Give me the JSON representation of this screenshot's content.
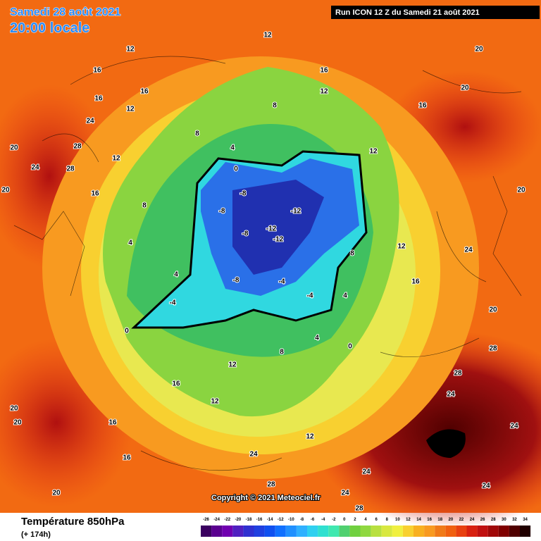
{
  "header": {
    "date": "Samedi 28 août 2021",
    "time": "20:00 locale",
    "run": "Run ICON 12 Z du Samedi 21 août 2021"
  },
  "copyright": "Copyright © 2021 Meteociel.fr",
  "footer": {
    "title": "Température 850hPa",
    "lead": "(+ 174h)"
  },
  "legend": {
    "labels": [
      -26,
      -24,
      -22,
      -20,
      -18,
      -16,
      -14,
      -12,
      -10,
      -8,
      -6,
      -4,
      -2,
      0,
      2,
      4,
      6,
      8,
      10,
      12,
      14,
      16,
      18,
      20,
      22,
      24,
      26,
      28,
      30,
      32,
      34
    ]
  },
  "map_labels": [
    12,
    16,
    20,
    12,
    16,
    16,
    24,
    28,
    28,
    24,
    20,
    16,
    12,
    8,
    4,
    4,
    8,
    12,
    12,
    16,
    20,
    20,
    20,
    24,
    16,
    12,
    8,
    4,
    0,
    -8,
    -8,
    -12,
    -12,
    -12,
    -8,
    -8,
    -4,
    -4,
    -4,
    0,
    0,
    4,
    8,
    12,
    16,
    20,
    24,
    28,
    28,
    24,
    24,
    20,
    16,
    12,
    8,
    4,
    12,
    16,
    20,
    24,
    28,
    24,
    20,
    16,
    12,
    28,
    24
  ]
}
